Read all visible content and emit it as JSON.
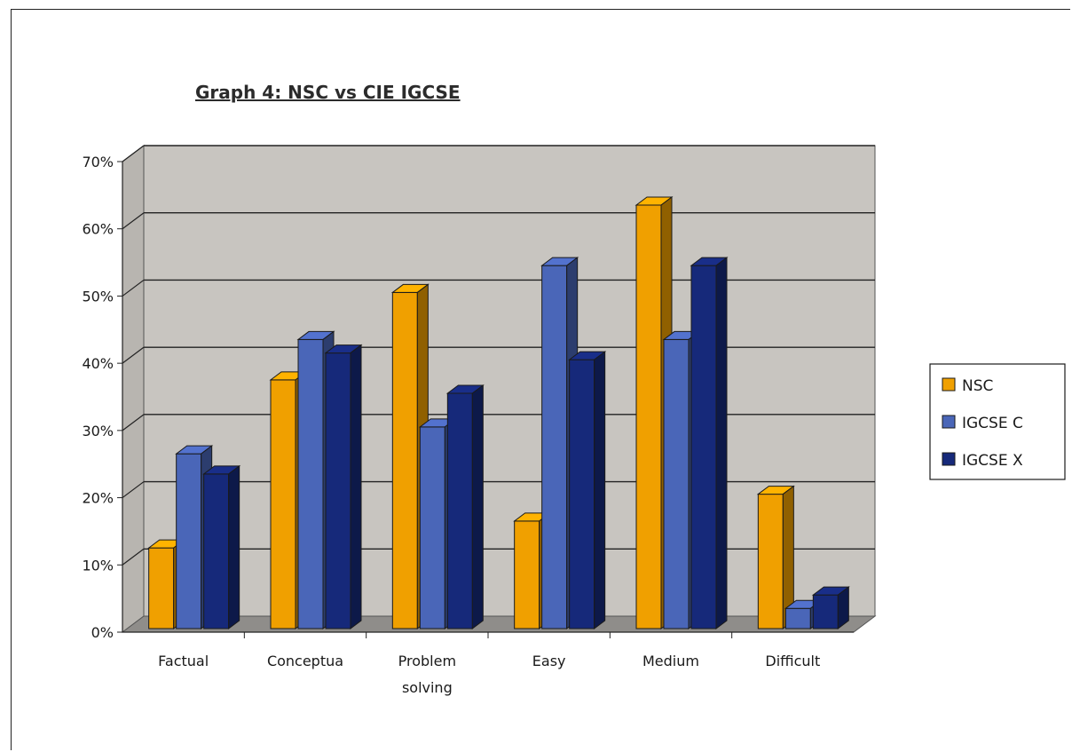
{
  "chart_data": {
    "type": "bar",
    "title": "Graph 4: NSC vs CIE IGCSE",
    "categories": [
      "Factual",
      "Conceptua",
      "Problem solving",
      "Easy",
      "Medium",
      "Difficult"
    ],
    "series": [
      {
        "name": "NSC",
        "values": [
          12,
          37,
          50,
          16,
          63,
          20
        ],
        "color": "#f0a000"
      },
      {
        "name": "IGCSE C",
        "values": [
          26,
          43,
          30,
          54,
          43,
          3
        ],
        "color": "#4a66b8"
      },
      {
        "name": "IGCSE X",
        "values": [
          23,
          41,
          35,
          40,
          54,
          5
        ],
        "color": "#16297a"
      }
    ],
    "y_ticks": [
      "0%",
      "10%",
      "20%",
      "30%",
      "40%",
      "50%",
      "60%",
      "70%"
    ],
    "ylim": [
      0,
      70
    ],
    "grid": true,
    "legend_position": "right",
    "style": "3d-clustered-column"
  }
}
